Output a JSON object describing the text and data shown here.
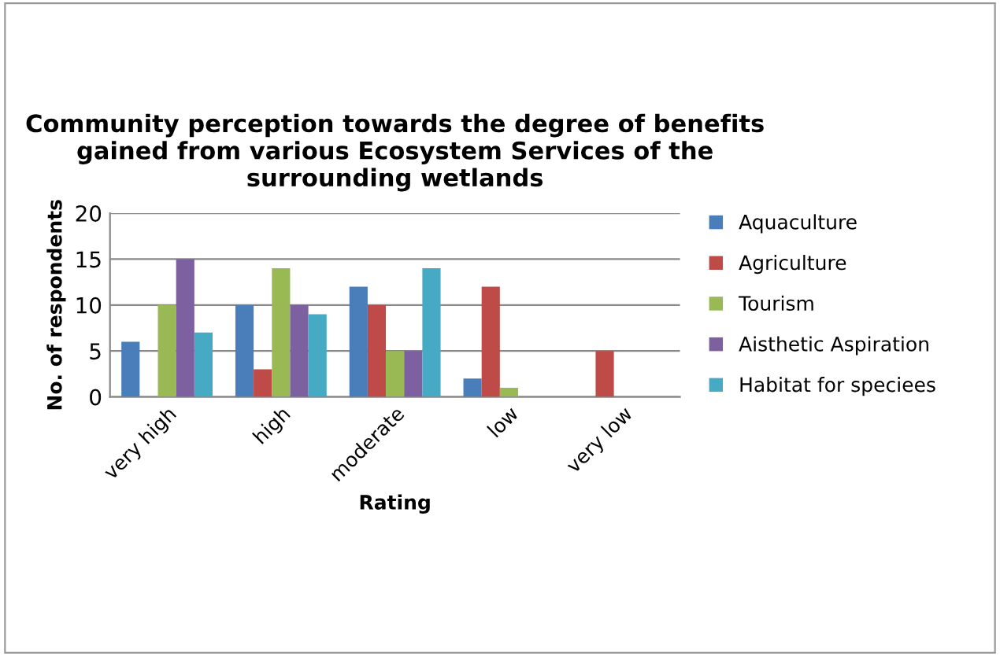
{
  "chart_data": {
    "type": "bar",
    "title": "Community perception towards the degree of benefits gained from various Ecosystem Services of the surrounding wetlands",
    "xlabel": "Rating",
    "ylabel": "No. of respondents",
    "categories": [
      "very high",
      "high",
      "moderate",
      "low",
      "very low"
    ],
    "series": [
      {
        "name": "Aquaculture",
        "color": "#4a7ebb",
        "values": [
          6,
          10,
          12,
          2,
          0
        ]
      },
      {
        "name": "Agriculture",
        "color": "#be4b48",
        "values": [
          0,
          3,
          10,
          12,
          5
        ]
      },
      {
        "name": "Tourism",
        "color": "#98b954",
        "values": [
          10,
          14,
          5,
          1,
          0
        ]
      },
      {
        "name": "Aisthetic Aspiration",
        "color": "#7d60a0",
        "values": [
          15,
          10,
          5,
          0,
          0
        ]
      },
      {
        "name": "Habitat for speciees",
        "color": "#46aac5",
        "values": [
          7,
          9,
          14,
          0,
          0
        ]
      }
    ],
    "ylim": [
      0,
      20
    ],
    "yticks": [
      0,
      5,
      10,
      15,
      20
    ],
    "grid": "y",
    "legend": "right"
  }
}
